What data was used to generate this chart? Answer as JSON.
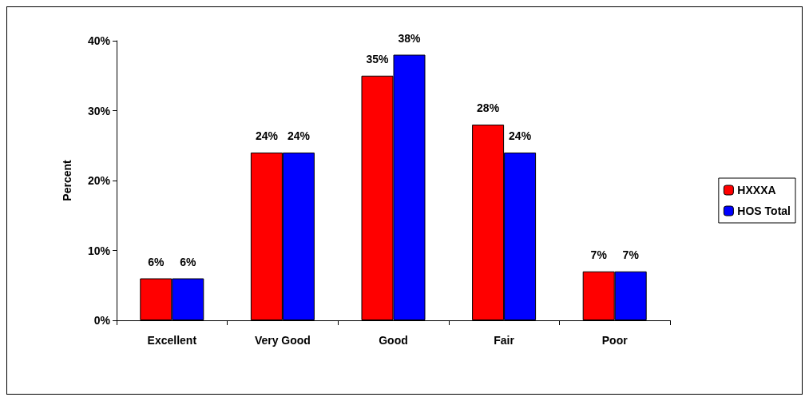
{
  "chart_data": {
    "type": "bar",
    "ylabel": "Percent",
    "categories": [
      "Excellent",
      "Very Good",
      "Good",
      "Fair",
      "Poor"
    ],
    "series": [
      {
        "name": "HXXXA",
        "color": "#ff0000",
        "values": [
          6,
          24,
          35,
          28,
          7
        ],
        "value_labels": [
          "6%",
          "24%",
          "35%",
          "28%",
          "7%"
        ]
      },
      {
        "name": "HOS Total",
        "color": "#0000ff",
        "values": [
          6,
          24,
          38,
          24,
          7
        ],
        "value_labels": [
          "6%",
          "24%",
          "38%",
          "24%",
          "7%"
        ]
      }
    ],
    "ylim": [
      0,
      40
    ],
    "yticks": [
      {
        "value": 0,
        "label": "0%"
      },
      {
        "value": 10,
        "label": "10%"
      },
      {
        "value": 20,
        "label": "20%"
      },
      {
        "value": 30,
        "label": "30%"
      },
      {
        "value": 40,
        "label": "40%"
      }
    ],
    "grid": false,
    "legend": "right"
  }
}
